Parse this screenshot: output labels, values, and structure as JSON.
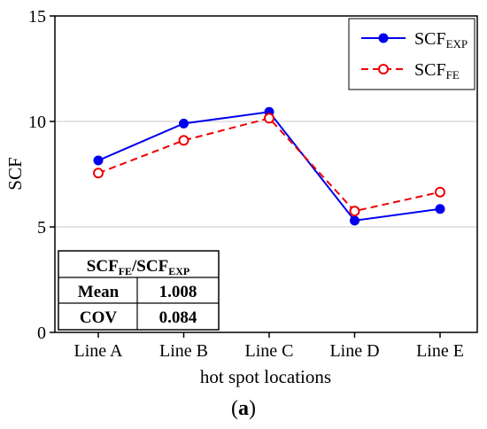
{
  "chart_data": {
    "type": "line",
    "categories": [
      "Line A",
      "Line B",
      "Line C",
      "Line D",
      "Line E"
    ],
    "series": [
      {
        "name": "SCF",
        "name_sub": "EXP",
        "values": [
          8.15,
          9.9,
          10.45,
          5.3,
          5.85
        ],
        "color": "#0000ee",
        "line": "solid",
        "marker": "filled-circle"
      },
      {
        "name": "SCF",
        "name_sub": "FE",
        "values": [
          7.55,
          9.1,
          10.15,
          5.75,
          6.65
        ],
        "color": "#ee0000",
        "line": "dashed",
        "marker": "open-circle"
      }
    ],
    "xlabel": "hot spot locations",
    "ylabel": "SCF",
    "ylim": [
      0,
      15
    ],
    "yticks": [
      "0",
      "5",
      "10",
      "15"
    ],
    "grid": "horizontal",
    "legend_position": "top-right",
    "table": {
      "header": {
        "main": "SCF",
        "sub1": "FE",
        "mid": "/SCF",
        "sub2": "EXP"
      },
      "rows": [
        {
          "label": "Mean",
          "value": "1.008"
        },
        {
          "label": "COV",
          "value": "0.084"
        }
      ]
    }
  },
  "caption": {
    "open": "(",
    "letter": "a",
    "close": ")"
  }
}
